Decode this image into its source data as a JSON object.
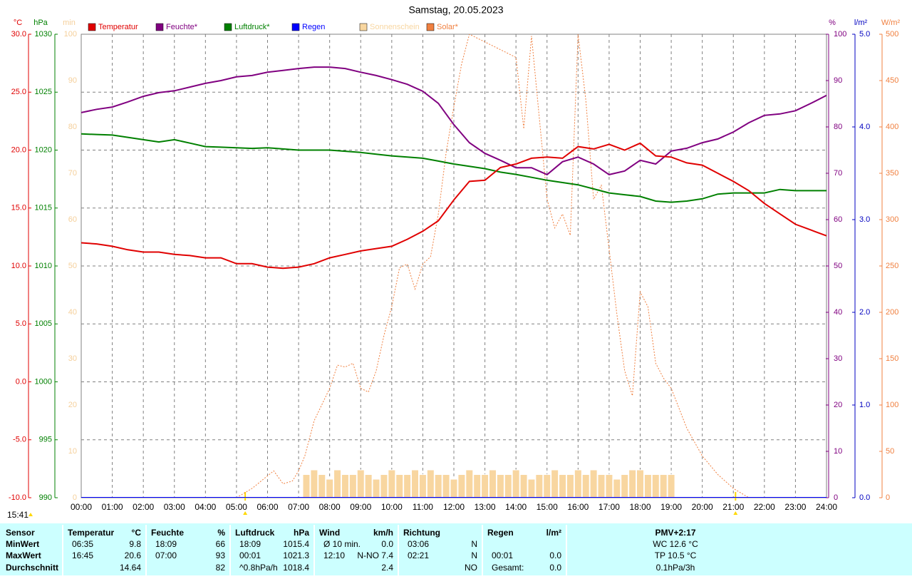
{
  "chart_data": {
    "type": "line",
    "title": "Samstag, 20.05.2023",
    "updated": "15:41",
    "sunrise": 5.28,
    "sunset": 21.07,
    "grid": true,
    "xlim": [
      0,
      24
    ],
    "xticks": [
      {
        "value": 0,
        "label": "00:00"
      },
      {
        "value": 1,
        "label": "01:00"
      },
      {
        "value": 2,
        "label": "02:00"
      },
      {
        "value": 3,
        "label": "03:00"
      },
      {
        "value": 4,
        "label": "04:00"
      },
      {
        "value": 5,
        "label": "05:00"
      },
      {
        "value": 6,
        "label": "06:00"
      },
      {
        "value": 7,
        "label": "07:00"
      },
      {
        "value": 8,
        "label": "08:00"
      },
      {
        "value": 9,
        "label": "09:00"
      },
      {
        "value": 10,
        "label": "10:00"
      },
      {
        "value": 11,
        "label": "11:00"
      },
      {
        "value": 12,
        "label": "12:00"
      },
      {
        "value": 13,
        "label": "13:00"
      },
      {
        "value": 14,
        "label": "14:00"
      },
      {
        "value": 15,
        "label": "15:00"
      },
      {
        "value": 16,
        "label": "16:00"
      },
      {
        "value": 17,
        "label": "17:00"
      },
      {
        "value": 18,
        "label": "18:00"
      },
      {
        "value": 19,
        "label": "19:00"
      },
      {
        "value": 20,
        "label": "20:00"
      },
      {
        "value": 21,
        "label": "21:00"
      },
      {
        "value": 22,
        "label": "22:00"
      },
      {
        "value": 23,
        "label": "23:00"
      },
      {
        "value": 24,
        "label": "24:00"
      }
    ],
    "axes": [
      {
        "unit": "°C",
        "side": "left",
        "color": "#e00000",
        "lim": [
          -10,
          30
        ],
        "ticks": [
          {
            "value": 30,
            "label": "30.0"
          },
          {
            "value": 25,
            "label": "25.0"
          },
          {
            "value": 20,
            "label": "20.0"
          },
          {
            "value": 15,
            "label": "15.0"
          },
          {
            "value": 10,
            "label": "10.0"
          },
          {
            "value": 5,
            "label": "5.0"
          },
          {
            "value": 0,
            "label": "0.0"
          },
          {
            "value": -5,
            "label": "-5.0"
          },
          {
            "value": -10,
            "label": "-10.0"
          }
        ]
      },
      {
        "unit": "hPa",
        "side": "left",
        "color": "#008000",
        "lim": [
          990,
          1030
        ],
        "ticks": [
          1030,
          1025,
          1020,
          1015,
          1010,
          1005,
          1000,
          995,
          990
        ]
      },
      {
        "unit": "min",
        "side": "left",
        "color": "#f5cf9a",
        "lim": [
          0,
          100
        ],
        "ticks": [
          100,
          90,
          80,
          70,
          60,
          50,
          40,
          30,
          20,
          10,
          0
        ]
      },
      {
        "unit": "%",
        "side": "right",
        "color": "#800080",
        "lim": [
          0,
          100
        ],
        "ticks": [
          100,
          90,
          80,
          70,
          60,
          50,
          40,
          30,
          20,
          10,
          0
        ]
      },
      {
        "unit": "l/m²",
        "side": "right",
        "color": "#0000c0",
        "lim": [
          0,
          5
        ],
        "ticks": [
          {
            "value": 5,
            "label": "5.0"
          },
          {
            "value": 4,
            "label": "4.0"
          },
          {
            "value": 3,
            "label": "3.0"
          },
          {
            "value": 2,
            "label": "2.0"
          },
          {
            "value": 1,
            "label": "1.0"
          },
          {
            "value": 0,
            "label": "0.0"
          }
        ]
      },
      {
        "unit": "W/m²",
        "side": "right",
        "color": "#f08040",
        "lim": [
          0,
          500
        ],
        "ticks": [
          500,
          450,
          400,
          350,
          300,
          250,
          200,
          150,
          100,
          50,
          0
        ]
      }
    ],
    "x": [
      0,
      0.5,
      1,
      1.5,
      2,
      2.5,
      3,
      3.5,
      4,
      4.5,
      5,
      5.5,
      6,
      6.5,
      7,
      7.5,
      8,
      8.5,
      9,
      9.5,
      10,
      10.5,
      11,
      11.5,
      12,
      12.5,
      13,
      13.5,
      14,
      14.5,
      15,
      15.5,
      16,
      16.5,
      17,
      17.5,
      18,
      18.5,
      19,
      19.5,
      20,
      20.5,
      21,
      21.5,
      22,
      22.5,
      23,
      23.5,
      24
    ],
    "series": [
      {
        "name": "Temperatur",
        "color": "#e00000",
        "axis": 0,
        "style": "line",
        "values": [
          12.0,
          11.9,
          11.7,
          11.4,
          11.2,
          11.2,
          11.0,
          10.9,
          10.7,
          10.7,
          10.2,
          10.2,
          9.9,
          9.8,
          9.9,
          10.2,
          10.7,
          11.0,
          11.3,
          11.5,
          11.7,
          12.3,
          13.0,
          13.9,
          15.7,
          17.3,
          17.4,
          18.5,
          18.8,
          19.3,
          19.4,
          19.3,
          20.3,
          20.1,
          20.5,
          20.0,
          20.6,
          19.5,
          19.4,
          18.9,
          18.7,
          18.0,
          17.3,
          16.5,
          15.4,
          14.5,
          13.6,
          13.1,
          12.6
        ]
      },
      {
        "name": "Feuchte*",
        "color": "#800080",
        "axis": 3,
        "style": "line",
        "values": [
          83.1,
          83.8,
          84.3,
          85.4,
          86.6,
          87.4,
          87.8,
          88.6,
          89.4,
          90.0,
          90.8,
          91.1,
          91.8,
          92.2,
          92.6,
          92.9,
          92.9,
          92.6,
          91.8,
          91.1,
          90.2,
          89.2,
          87.7,
          85.1,
          80.5,
          76.6,
          74.3,
          72.8,
          71.2,
          71.2,
          69.7,
          72.5,
          73.5,
          72.0,
          69.7,
          70.5,
          72.8,
          72.0,
          74.8,
          75.4,
          76.6,
          77.4,
          78.9,
          80.9,
          82.5,
          82.8,
          83.5,
          85.1,
          86.8
        ]
      },
      {
        "name": "Luftdruck*",
        "color": "#008000",
        "axis": 1,
        "style": "line",
        "values": [
          1021.4,
          1021.35,
          1021.3,
          1021.1,
          1020.9,
          1020.7,
          1020.9,
          1020.6,
          1020.3,
          1020.25,
          1020.2,
          1020.15,
          1020.2,
          1020.1,
          1020.0,
          1020.0,
          1020.0,
          1019.9,
          1019.8,
          1019.65,
          1019.5,
          1019.4,
          1019.3,
          1019.05,
          1018.8,
          1018.6,
          1018.4,
          1018.1,
          1017.9,
          1017.65,
          1017.4,
          1017.2,
          1017.0,
          1016.65,
          1016.3,
          1016.15,
          1016.0,
          1015.6,
          1015.5,
          1015.6,
          1015.8,
          1016.2,
          1016.3,
          1016.3,
          1016.3,
          1016.6,
          1016.5,
          1016.5,
          1016.5
        ]
      },
      {
        "name": "Regen",
        "color": "#0000ff",
        "axis": 4,
        "style": "line",
        "x": [
          0,
          24
        ],
        "values": [
          0,
          0
        ]
      },
      {
        "name": "Sonnenschein",
        "color": "#f8d6a0",
        "axis": 2,
        "style": "bar",
        "x": [
          7.25,
          7.5,
          7.75,
          8,
          8.25,
          8.5,
          8.75,
          9,
          9.25,
          9.5,
          9.75,
          10,
          10.25,
          10.5,
          10.75,
          11,
          11.25,
          11.5,
          11.75,
          12,
          12.25,
          12.5,
          12.75,
          13,
          13.25,
          13.5,
          13.75,
          14,
          14.25,
          14.5,
          14.75,
          15,
          15.25,
          15.5,
          15.75,
          16,
          16.25,
          16.5,
          16.75,
          17,
          17.25,
          17.5,
          17.75,
          18,
          18.25,
          18.5,
          18.75,
          19
        ],
        "values": [
          5,
          6,
          5,
          4,
          6,
          5,
          5,
          6,
          5,
          4,
          5,
          6,
          5,
          5,
          6,
          5,
          6,
          5,
          5,
          4,
          5,
          6,
          5,
          5,
          6,
          5,
          5,
          6,
          5,
          4,
          5,
          5,
          6,
          5,
          5,
          6,
          5,
          6,
          5,
          5,
          4,
          5,
          6,
          6,
          5,
          5,
          5,
          5
        ]
      },
      {
        "name": "Solar*",
        "color": "#f08040",
        "axis": 5,
        "style": "dotted",
        "x": [
          5,
          5.5,
          6.2,
          6.5,
          6.8,
          7,
          7.2,
          7.5,
          8,
          8.25,
          8.5,
          8.75,
          9,
          9.25,
          9.5,
          9.75,
          10,
          10.25,
          10.5,
          10.75,
          11,
          11.25,
          11.5,
          11.75,
          12,
          12.25,
          12.5,
          14,
          14.25,
          14.5,
          15,
          15.25,
          15.5,
          15.75,
          16,
          16.25,
          16.5,
          16.75,
          17,
          17.25,
          17.5,
          17.75,
          18,
          18.25,
          18.5,
          18.75,
          19,
          19.5,
          20,
          20.5,
          21,
          21.5,
          22
        ],
        "values": [
          0,
          10,
          29,
          15,
          18,
          29,
          45,
          83,
          118,
          143,
          141,
          145,
          118,
          114,
          137,
          175,
          206,
          248,
          252,
          225,
          252,
          260,
          306,
          372,
          422,
          468,
          500,
          475,
          398,
          498,
          322,
          291,
          306,
          283,
          500,
          429,
          322,
          337,
          268,
          198,
          137,
          110,
          222,
          206,
          145,
          129,
          118,
          75,
          45,
          25,
          10,
          0,
          0
        ]
      }
    ]
  },
  "table": {
    "row_labels": [
      "Sensor",
      "MinWert",
      "MaxWert",
      "Durchschnitt"
    ],
    "columns": [
      {
        "title": "Temperatur",
        "unit": "°C",
        "rows": [
          [
            "06:35",
            "9.8"
          ],
          [
            "16:45",
            "20.6"
          ],
          [
            null,
            "14.64"
          ]
        ]
      },
      {
        "title": "Feuchte",
        "unit": "%",
        "rows": [
          [
            "18:09",
            "66"
          ],
          [
            "07:00",
            "93"
          ],
          [
            null,
            "82"
          ]
        ]
      },
      {
        "title": "Luftdruck",
        "unit": "hPa",
        "rows": [
          [
            "18:09",
            "1015.4"
          ],
          [
            "00:01",
            "1021.3"
          ],
          [
            "^0.8hPa/h",
            "1018.4"
          ]
        ]
      },
      {
        "title": "Wind",
        "unit": "km/h",
        "rows": [
          [
            "Ø 10 min.",
            "0.0"
          ],
          [
            "12:10",
            "N-NO 7.4"
          ],
          [
            null,
            "2.4"
          ]
        ]
      },
      {
        "title": "Richtung",
        "unit": null,
        "rows": [
          [
            "03:06",
            "N"
          ],
          [
            "02:21",
            "N"
          ],
          [
            null,
            "NO"
          ]
        ]
      },
      {
        "title": "Regen",
        "unit": "l/m²",
        "rows": [
          [
            null,
            null
          ],
          [
            "00:01",
            "0.0"
          ],
          [
            "Gesamt:",
            "0.0"
          ]
        ]
      }
    ],
    "extra": {
      "title": "PMV+2:17",
      "rows": [
        "WC 12.6 °C",
        "TP 10.5 °C",
        "0.1hPa/3h"
      ]
    }
  }
}
